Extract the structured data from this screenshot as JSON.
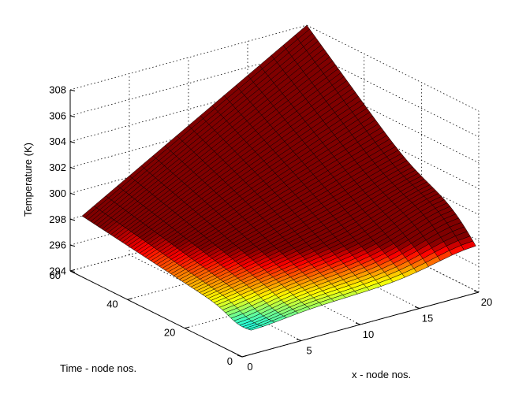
{
  "chart_data": {
    "type": "surface",
    "xlabel": "x - node nos.",
    "ylabel": "Time - node nos.",
    "zlabel": "Temperature (K)",
    "x_ticks": [
      0,
      5,
      10,
      15,
      20
    ],
    "y_ticks": [
      0,
      20,
      40,
      60
    ],
    "z_ticks": [
      294,
      296,
      298,
      300,
      302,
      304,
      306,
      308
    ],
    "x_range": [
      0,
      20
    ],
    "y_range": [
      0,
      60
    ],
    "z_range": [
      294,
      308
    ],
    "grid": true,
    "colormap": "jet",
    "color_range": [
      294,
      298
    ],
    "surface": {
      "x_nodes": 20,
      "t_nodes": 60,
      "corner_values": {
        "x1_t1": 296.0,
        "x20_t1": 296.5,
        "x1_t60": 298.0,
        "x20_t60": 308.0
      },
      "hot_region_peak": 297.8,
      "cold_region_min": 295.5
    }
  }
}
